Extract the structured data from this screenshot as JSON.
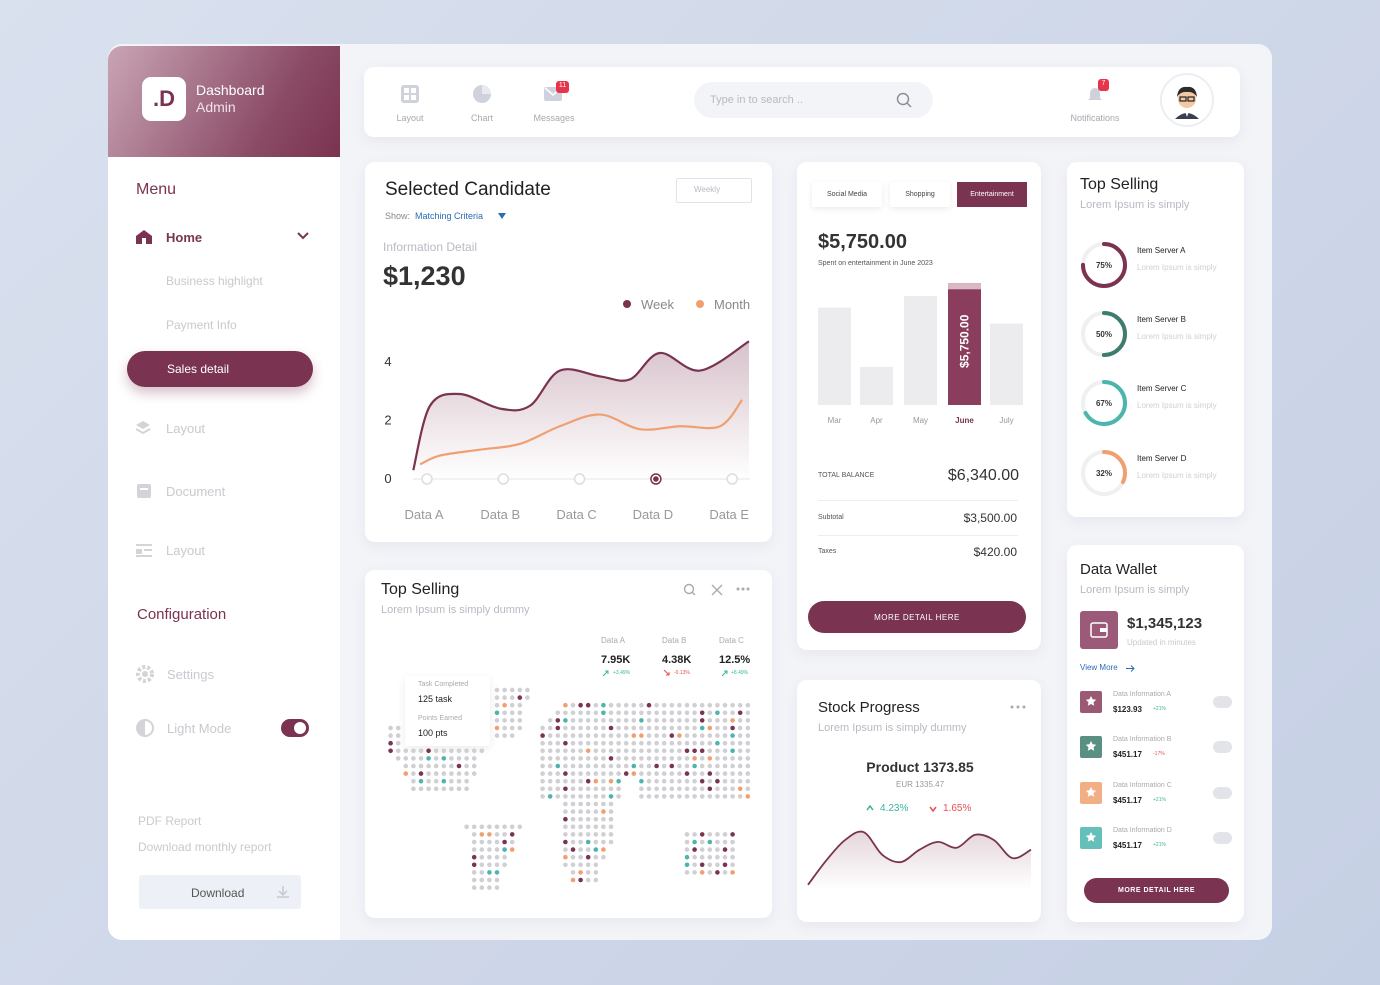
{
  "sidebar": {
    "logo": ".D",
    "title": "Dashboard",
    "subtitle": "Admin",
    "menu_title": "Menu",
    "home": "Home",
    "sub_items": [
      "Business highlight",
      "Payment Info"
    ],
    "active_item": "Sales detail",
    "items": [
      "Layout",
      "Document",
      "Layout"
    ],
    "config_title": "Configuration",
    "config_items": [
      "Settings",
      "Light Mode"
    ],
    "pdf_title": "PDF Report",
    "pdf_text": "Download monthly report",
    "download": "Download"
  },
  "topbar": {
    "tabs": [
      "Layout",
      "Chart",
      "Messages"
    ],
    "messages_badge": "11",
    "search_placeholder": "Type in to search ..",
    "notifications": "Notifications",
    "notifications_badge": "7"
  },
  "candidate": {
    "title": "Selected Candidate",
    "dropdown": "Weekly",
    "show_label": "Show:",
    "show_value": "Matching Criteria",
    "info_label": "Information Detail",
    "amount": "$1,230",
    "chart": {
      "type": "line",
      "xlim": [
        -0.3,
        4.3
      ],
      "xticks": [
        {
          "value": 0,
          "label": "Data A"
        },
        {
          "value": 1,
          "label": "Data B"
        },
        {
          "value": 2,
          "label": "Data C"
        },
        {
          "value": 3,
          "label": "Data D"
        },
        {
          "value": 4,
          "label": "Data E"
        }
      ],
      "highlight": "Data D",
      "ylim": [
        0,
        5
      ],
      "yticks": [
        0,
        2,
        4
      ],
      "grid": false,
      "series": [
        {
          "name": "Week",
          "color": "#7a3350",
          "x": [
            -0.18,
            0.04,
            0.43,
            0.96,
            1.35,
            1.74,
            2.27,
            2.66,
            3.05,
            3.58,
            4.22
          ],
          "values": [
            0.3,
            2.5,
            2.9,
            2.4,
            2.5,
            3.7,
            3.5,
            3.4,
            4.3,
            3.7,
            4.7
          ]
        },
        {
          "name": "Month",
          "color": "#f0a070",
          "x": [
            -0.09,
            0.17,
            0.69,
            1.22,
            1.74,
            2.27,
            2.79,
            3.32,
            3.84,
            4.13
          ],
          "values": [
            0.5,
            0.8,
            1.0,
            1.2,
            1.8,
            2.2,
            1.7,
            1.8,
            1.8,
            2.7
          ]
        }
      ]
    }
  },
  "map_card": {
    "title": "Top Selling",
    "subtitle": "Lorem Ipsum is simply dummy",
    "stats": [
      {
        "label": "Data A",
        "value": "7.95K",
        "change": "+3.49%"
      },
      {
        "label": "Data B",
        "value": "4.38K",
        "change": "-0.13%"
      },
      {
        "label": "Data C",
        "value": "12.5%",
        "change": "+8.49%"
      }
    ],
    "tooltip": {
      "task_label": "Task Completed",
      "task_value": "125 task",
      "points_label": "Points Earned",
      "points_value": "100 pts"
    }
  },
  "spending": {
    "tabs": [
      "Social Media",
      "Shopping",
      "Entertainment"
    ],
    "amount": "$5,750.00",
    "caption": "Spent on entertainment in June 2023",
    "chart": {
      "type": "bar",
      "categories": [
        "Mar",
        "Apr",
        "May",
        "June",
        "July"
      ],
      "values": [
        4600,
        1800,
        5150,
        5750,
        3850
      ],
      "value_labels": [
        null,
        null,
        null,
        "$5,750.00",
        null
      ],
      "colors": [
        "#ececee",
        "#ececee",
        "#ececee",
        "#8a3d5c",
        "#ececee"
      ],
      "ylim": [
        0,
        6000
      ]
    },
    "total_label": "TOTAL BALANCE",
    "total_value": "$6,340.00",
    "subtotal_label": "Subtotal",
    "subtotal_value": "$3,500.00",
    "taxes_label": "Taxes",
    "taxes_value": "$420.00",
    "button": "MORE DETAIL HERE"
  },
  "stock": {
    "title": "Stock Progress",
    "subtitle": "Lorem Ipsum is simply dummy",
    "product": "Product 1373.85",
    "eur": "EUR 1335.47",
    "up": "4.23%",
    "down": "1.65%",
    "chart": {
      "type": "area",
      "color": "#7a3350",
      "categories": [
        null,
        null,
        null,
        null,
        null,
        null,
        null,
        null,
        null,
        null,
        null,
        null,
        null
      ],
      "values": [
        0.8,
        4.6,
        7.7,
        8.9,
        5.4,
        4.3,
        6.2,
        7.4,
        6.5,
        8.5,
        7.7,
        4.9,
        6.2
      ],
      "ylim": [
        0,
        10
      ]
    }
  },
  "top_selling": {
    "title": "Top Selling",
    "subtitle": "Lorem Ipsum is simply",
    "items": [
      {
        "name": "Item Server A",
        "desc": "Lorem Ipsum is simply",
        "value": 75,
        "value_label": "75%",
        "color": "#7a3350"
      },
      {
        "name": "Item Server B",
        "desc": "Lorem Ipsum is simply",
        "value": 50,
        "value_label": "50%",
        "color": "#3d7c6e"
      },
      {
        "name": "Item Server C",
        "desc": "Lorem Ipsum is simply",
        "value": 67,
        "value_label": "67%",
        "color": "#4bb5ae"
      },
      {
        "name": "Item Server D",
        "desc": "Lorem Ipsum is simply",
        "value": 32,
        "value_label": "32%",
        "color": "#f0a070"
      }
    ]
  },
  "wallet": {
    "title": "Data Wallet",
    "subtitle": "Lorem Ipsum is simply",
    "amount": "$1,345,123",
    "updated": "Updated in minutes",
    "view_more": "View More",
    "items": [
      {
        "name": "Data Information A",
        "price": "$123.93",
        "change": "+21%"
      },
      {
        "name": "Data Information B",
        "price": "$451.17",
        "change": "-17%"
      },
      {
        "name": "Data Information C",
        "price": "$451.17",
        "change": "+21%"
      },
      {
        "name": "Data Information D",
        "price": "$451.17",
        "change": "+21%"
      }
    ],
    "button": "MORE DETAIL HERE"
  }
}
